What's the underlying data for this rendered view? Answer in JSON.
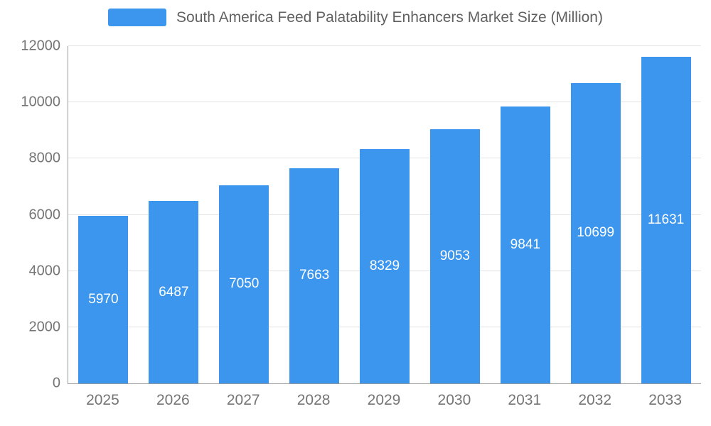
{
  "legend": {
    "label": "South America Feed Palatability Enhancers Market Size (Million)"
  },
  "chart_data": {
    "type": "bar",
    "title": "South America Feed Palatability Enhancers Market Size (Million)",
    "categories": [
      "2025",
      "2026",
      "2027",
      "2028",
      "2029",
      "2030",
      "2031",
      "2032",
      "2033"
    ],
    "values": [
      5970,
      6487,
      7050,
      7663,
      8329,
      9053,
      9841,
      10699,
      11631
    ],
    "xlabel": "",
    "ylabel": "",
    "ylim": [
      0,
      12000
    ],
    "yticks": [
      0,
      2000,
      4000,
      6000,
      8000,
      10000,
      12000
    ],
    "grid": true,
    "legend_position": "top",
    "bar_color": "#3d96ee",
    "value_label_color": "#ffffff",
    "axis_text_color": "#757575",
    "grid_color": "#e3e3e3"
  }
}
